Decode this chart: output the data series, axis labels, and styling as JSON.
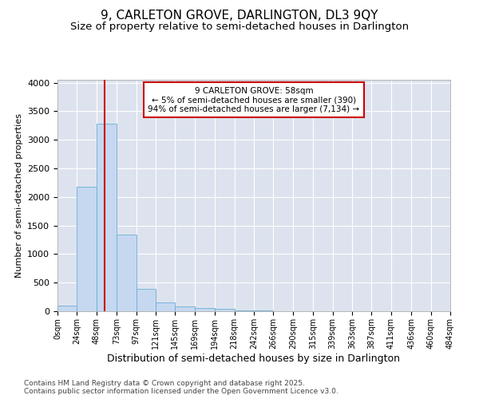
{
  "title": "9, CARLETON GROVE, DARLINGTON, DL3 9QY",
  "subtitle": "Size of property relative to semi-detached houses in Darlington",
  "xlabel": "Distribution of semi-detached houses by size in Darlington",
  "ylabel": "Number of semi-detached properties",
  "footer_line1": "Contains HM Land Registry data © Crown copyright and database right 2025.",
  "footer_line2": "Contains public sector information licensed under the Open Government Licence v3.0.",
  "annotation_line1": "9 CARLETON GROVE: 58sqm",
  "annotation_line2": "← 5% of semi-detached houses are smaller (390)",
  "annotation_line3": "94% of semi-detached houses are larger (7,134) →",
  "property_size": 58,
  "bar_edges": [
    0,
    24,
    48,
    73,
    97,
    121,
    145,
    169,
    194,
    218,
    242,
    266,
    290,
    315,
    339,
    363,
    387,
    411,
    436,
    460,
    484
  ],
  "bar_heights": [
    100,
    2175,
    3280,
    1340,
    395,
    155,
    90,
    55,
    40,
    20,
    15,
    5,
    5,
    0,
    0,
    0,
    0,
    0,
    0,
    0
  ],
  "bar_color": "#c5d8f0",
  "bar_edge_color": "#6baed6",
  "red_line_color": "#cc0000",
  "annotation_box_color": "#cc0000",
  "background_color": "#dde3ee",
  "ylim": [
    0,
    4050
  ],
  "yticks": [
    0,
    500,
    1000,
    1500,
    2000,
    2500,
    3000,
    3500,
    4000
  ],
  "tick_labels": [
    "0sqm",
    "24sqm",
    "48sqm",
    "73sqm",
    "97sqm",
    "121sqm",
    "145sqm",
    "169sqm",
    "194sqm",
    "218sqm",
    "242sqm",
    "266sqm",
    "290sqm",
    "315sqm",
    "339sqm",
    "363sqm",
    "387sqm",
    "411sqm",
    "436sqm",
    "460sqm",
    "484sqm"
  ],
  "title_fontsize": 11,
  "subtitle_fontsize": 9.5,
  "xlabel_fontsize": 9,
  "ylabel_fontsize": 8,
  "footer_fontsize": 6.5
}
